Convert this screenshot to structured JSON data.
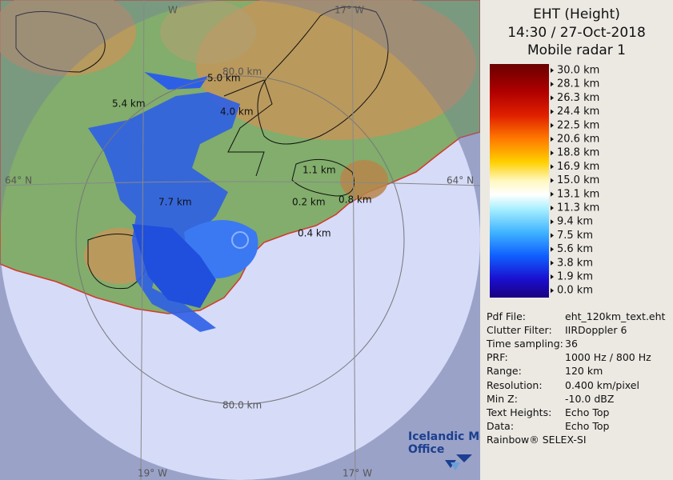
{
  "map": {
    "grid_labels": [
      "W",
      "17° W",
      "64° N",
      "64° N",
      "80.0 km",
      "80.0 km",
      "19° W",
      "17° W"
    ],
    "height_labels": [
      "5.0 km",
      "5.4 km",
      "4.0 km",
      "1.1 km",
      "7.7 km",
      "0.2 km",
      "0.8 km",
      "0.4 km"
    ],
    "logo": [
      "Icelandic Met",
      "Office"
    ]
  },
  "panel": {
    "title": [
      "EHT (Height)",
      "14:30 / 27-Oct-2018",
      "Mobile radar 1"
    ],
    "legend": [
      "30.0 km",
      "28.1 km",
      "26.3 km",
      "24.4 km",
      "22.5 km",
      "20.6 km",
      "18.8 km",
      "16.9 km",
      "15.0 km",
      "13.1 km",
      "11.3 km",
      "9.4 km",
      "7.5 km",
      "5.6 km",
      "3.8 km",
      "1.9 km",
      "0.0 km"
    ],
    "info": [
      [
        "Pdf File:",
        "eht_120km_text.eht"
      ],
      [
        "Clutter Filter:",
        "IIRDoppler 6"
      ],
      [
        "Time sampling:",
        "36"
      ],
      [
        "PRF:",
        "1000 Hz / 800 Hz"
      ],
      [
        "Range:",
        "120 km"
      ],
      [
        "Resolution:",
        "0.400 km/pixel"
      ],
      [
        "Min Z:",
        "-10.0 dBZ"
      ],
      [
        "Text Heights:",
        "Echo Top"
      ],
      [
        "Data:",
        "Echo Top"
      ]
    ],
    "footer": "Rainbow® SELEX-SI"
  }
}
